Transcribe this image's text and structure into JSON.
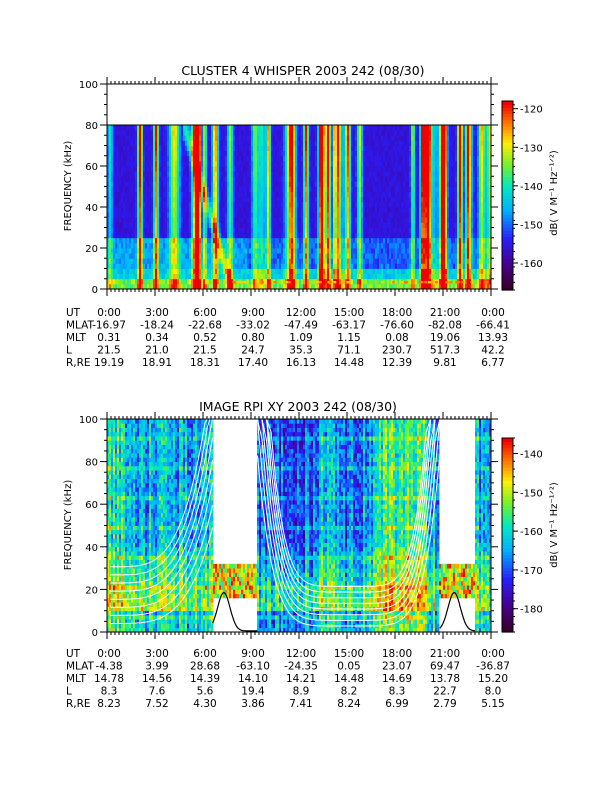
{
  "chart_data": [
    {
      "type": "heatmap",
      "title": "CLUSTER 4 WHISPER 2003 242 (08/30)",
      "ylabel": "FREQUENCY (kHz)",
      "ylim": [
        0,
        100
      ],
      "yticks": [
        "0",
        "20",
        "40",
        "60",
        "80",
        "100"
      ],
      "colorbar": {
        "label": "dB( V M⁻¹ Hz⁻¹ᐟ²)",
        "range": [
          -167,
          -118
        ],
        "ticks": [
          "-120",
          "-130",
          "-140",
          "-150",
          "-160"
        ],
        "tick_values": [
          -120,
          -130,
          -140,
          -150,
          -160
        ]
      },
      "x_time_labels": [
        "0:00",
        "3:00",
        "6:00",
        "9:00",
        "12:00",
        "15:00",
        "18:00",
        "21:00",
        "0:00"
      ],
      "x_time_hours": [
        0,
        3,
        6,
        9,
        12,
        15,
        18,
        21,
        24
      ],
      "data_freq_max_khz": 80,
      "ephemeris": [
        {
          "name": "UT",
          "values": [
            "0:00",
            "3:00",
            "6:00",
            "9:00",
            "12:00",
            "15:00",
            "18:00",
            "21:00",
            "0:00"
          ]
        },
        {
          "name": "MLAT",
          "values": [
            "-16.97",
            "-18.24",
            "-22.68",
            "-33.02",
            "-47.49",
            "-63.17",
            "-76.60",
            "-82.08",
            "-66.41"
          ]
        },
        {
          "name": "MLT",
          "values": [
            "0.31",
            "0.34",
            "0.52",
            "0.80",
            "1.09",
            "1.15",
            "0.08",
            "19.06",
            "13.93"
          ]
        },
        {
          "name": "L",
          "values": [
            "21.5",
            "21.0",
            "21.5",
            "24.7",
            "35.3",
            "71.1",
            "230.7",
            "517.3",
            "42.2"
          ]
        },
        {
          "name": "R,RE",
          "values": [
            "19.19",
            "18.91",
            "18.31",
            "17.40",
            "16.13",
            "14.48",
            "12.39",
            "9.81",
            "6.77"
          ]
        }
      ]
    },
    {
      "type": "heatmap",
      "title": "IMAGE RPI XY 2003 242 (08/30)",
      "ylabel": "FREQUENCY (kHz)",
      "ylim": [
        0,
        100
      ],
      "yticks": [
        "0",
        "20",
        "40",
        "60",
        "80",
        "100"
      ],
      "colorbar": {
        "label": "dB( V M⁻¹ Hz⁻¹ᐟ²)",
        "range": [
          -186,
          -136
        ],
        "ticks": [
          "-140",
          "-150",
          "-160",
          "-170",
          "-180"
        ],
        "tick_values": [
          -140,
          -150,
          -160,
          -170,
          -180
        ]
      },
      "x_time_labels": [
        "0:00",
        "3:00",
        "6:00",
        "9:00",
        "12:00",
        "15:00",
        "18:00",
        "21:00",
        "0:00"
      ],
      "x_time_hours": [
        0,
        3,
        6,
        9,
        12,
        15,
        18,
        21,
        24
      ],
      "data_gaps_hours": [
        [
          6.6,
          9.4
        ],
        [
          20.8,
          23.0
        ]
      ],
      "ephemeris": [
        {
          "name": "UT",
          "values": [
            "0:00",
            "3:00",
            "6:00",
            "9:00",
            "12:00",
            "15:00",
            "18:00",
            "21:00",
            "0:00"
          ]
        },
        {
          "name": "MLAT",
          "values": [
            "-4.38",
            "3.99",
            "28.68",
            "-63.10",
            "-24.35",
            "0.05",
            "23.07",
            "69.47",
            "-36.87"
          ]
        },
        {
          "name": "MLT",
          "values": [
            "14.78",
            "14.56",
            "14.39",
            "14.10",
            "14.21",
            "14.48",
            "14.69",
            "13.78",
            "15.20"
          ]
        },
        {
          "name": "L",
          "values": [
            "8.3",
            "7.6",
            "5.6",
            "19.4",
            "8.9",
            "8.2",
            "8.3",
            "22.7",
            "8.0"
          ]
        },
        {
          "name": "R,RE",
          "values": [
            "8.23",
            "7.52",
            "4.30",
            "3.86",
            "7.41",
            "8.24",
            "6.99",
            "2.79",
            "5.15"
          ]
        }
      ]
    }
  ]
}
